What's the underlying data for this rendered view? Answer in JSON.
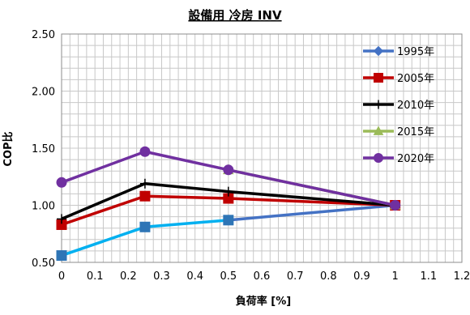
{
  "chart_data": {
    "type": "line",
    "title": "設備用 冷房 INV",
    "xlabel": "負荷率 [%]",
    "ylabel": "COP比",
    "xlim": [
      0,
      1.2
    ],
    "ylim": [
      0.5,
      2.5
    ],
    "xticks": [
      0,
      0.1,
      0.2,
      0.3,
      0.4,
      0.5,
      0.6,
      0.7,
      0.8,
      0.9,
      1,
      1.1,
      1.2
    ],
    "xtick_labels": [
      "0",
      "0.1",
      "0.2",
      "0.3",
      "0.4",
      "0.5",
      "0.6",
      "0.7",
      "0.8",
      "0.9",
      "1",
      "1.1",
      "1.2"
    ],
    "yticks": [
      0.5,
      1.0,
      1.5,
      2.0,
      2.5
    ],
    "ytick_labels": [
      "0.50",
      "1.00",
      "1.50",
      "2.00",
      "2.50"
    ],
    "grid": true,
    "legend_position": "top-right",
    "series": [
      {
        "name": "1995年",
        "color": "#4472c4",
        "line_color": "#4472c4",
        "marker": "diamond",
        "x": [
          0.5,
          1.0
        ],
        "y": [
          0.87,
          1.0
        ]
      },
      {
        "name": "2005年",
        "color": "#c00000",
        "line_color": "#c00000",
        "marker": "square",
        "x": [
          0,
          0.25,
          0.5,
          1.0
        ],
        "y": [
          0.83,
          1.08,
          1.06,
          1.0
        ]
      },
      {
        "name": "2010年",
        "color": "#000000",
        "line_color": "#000000",
        "marker": "plus",
        "x": [
          0,
          0.25,
          0.5,
          1.0
        ],
        "y": [
          0.88,
          1.19,
          1.12,
          1.0
        ]
      },
      {
        "name": "2015年",
        "color": "#9bbb59",
        "line_color": "#9bbb59",
        "marker": "triangle",
        "x": [
          0.5,
          1.0
        ],
        "y": [
          1.31,
          1.0
        ]
      },
      {
        "name": "2020年",
        "color": "#7030a0",
        "line_color": "#7030a0",
        "marker": "circle",
        "x": [
          0,
          0.25,
          0.5,
          1.0
        ],
        "y": [
          1.2,
          1.47,
          1.31,
          1.0
        ]
      },
      {
        "name": "",
        "color": "#2e75b6",
        "line_color": "#00b0f0",
        "marker": "square",
        "x": [
          0,
          0.25,
          0.5
        ],
        "y": [
          0.56,
          0.81,
          0.87
        ]
      }
    ]
  }
}
